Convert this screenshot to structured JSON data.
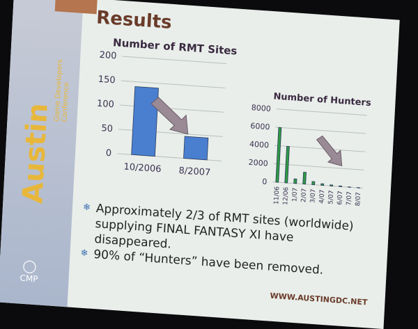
{
  "slide": {
    "title": "Results",
    "logo": {
      "name": "Austin",
      "subtitle": "Game Developers Conference",
      "sponsor": "CMP"
    },
    "bullets": [
      "Approximately 2/3 of RMT sites (worldwide) supplying FINAL FANTASY XI have disappeared.",
      "90% of “Hunters” have been removed."
    ],
    "footer": "WWW.AUSTINGDC.NET"
  },
  "chart_data": [
    {
      "type": "bar",
      "title": "Number of RMT Sites",
      "categories": [
        "10/2006",
        "8/2007"
      ],
      "values": [
        140,
        45
      ],
      "ylim": [
        0,
        200
      ],
      "yticks": [
        0,
        50,
        100,
        150,
        200
      ],
      "grid": true,
      "color": "#4a7fd0",
      "annotation": "downward arrow"
    },
    {
      "type": "bar",
      "title": "Number of Hunters",
      "categories": [
        "11/06",
        "12/06",
        "1/07",
        "2/07",
        "3/07",
        "4/07",
        "5/07",
        "6/07",
        "7/07",
        "8/07"
      ],
      "values": [
        6000,
        4000,
        500,
        1300,
        350,
        180,
        120,
        80,
        40,
        30
      ],
      "ylim": [
        0,
        8000
      ],
      "yticks": [
        0,
        2000,
        4000,
        6000,
        8000
      ],
      "grid": true,
      "color": "#2f9a44",
      "annotation": "downward arrow"
    }
  ]
}
